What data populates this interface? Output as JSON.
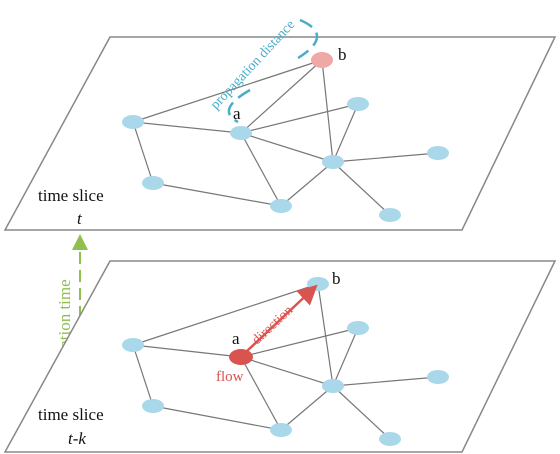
{
  "top_slice": {
    "annotation": "propagation distance",
    "node_b": "b",
    "node_a": "a",
    "label": "time slice",
    "time": "t"
  },
  "side_annotation": "propagation time",
  "bottom_slice": {
    "node_b": "b",
    "node_a": "a",
    "arrow_label": "direction",
    "node_a_note": "flow",
    "label": "time slice",
    "time": "t-k"
  }
}
